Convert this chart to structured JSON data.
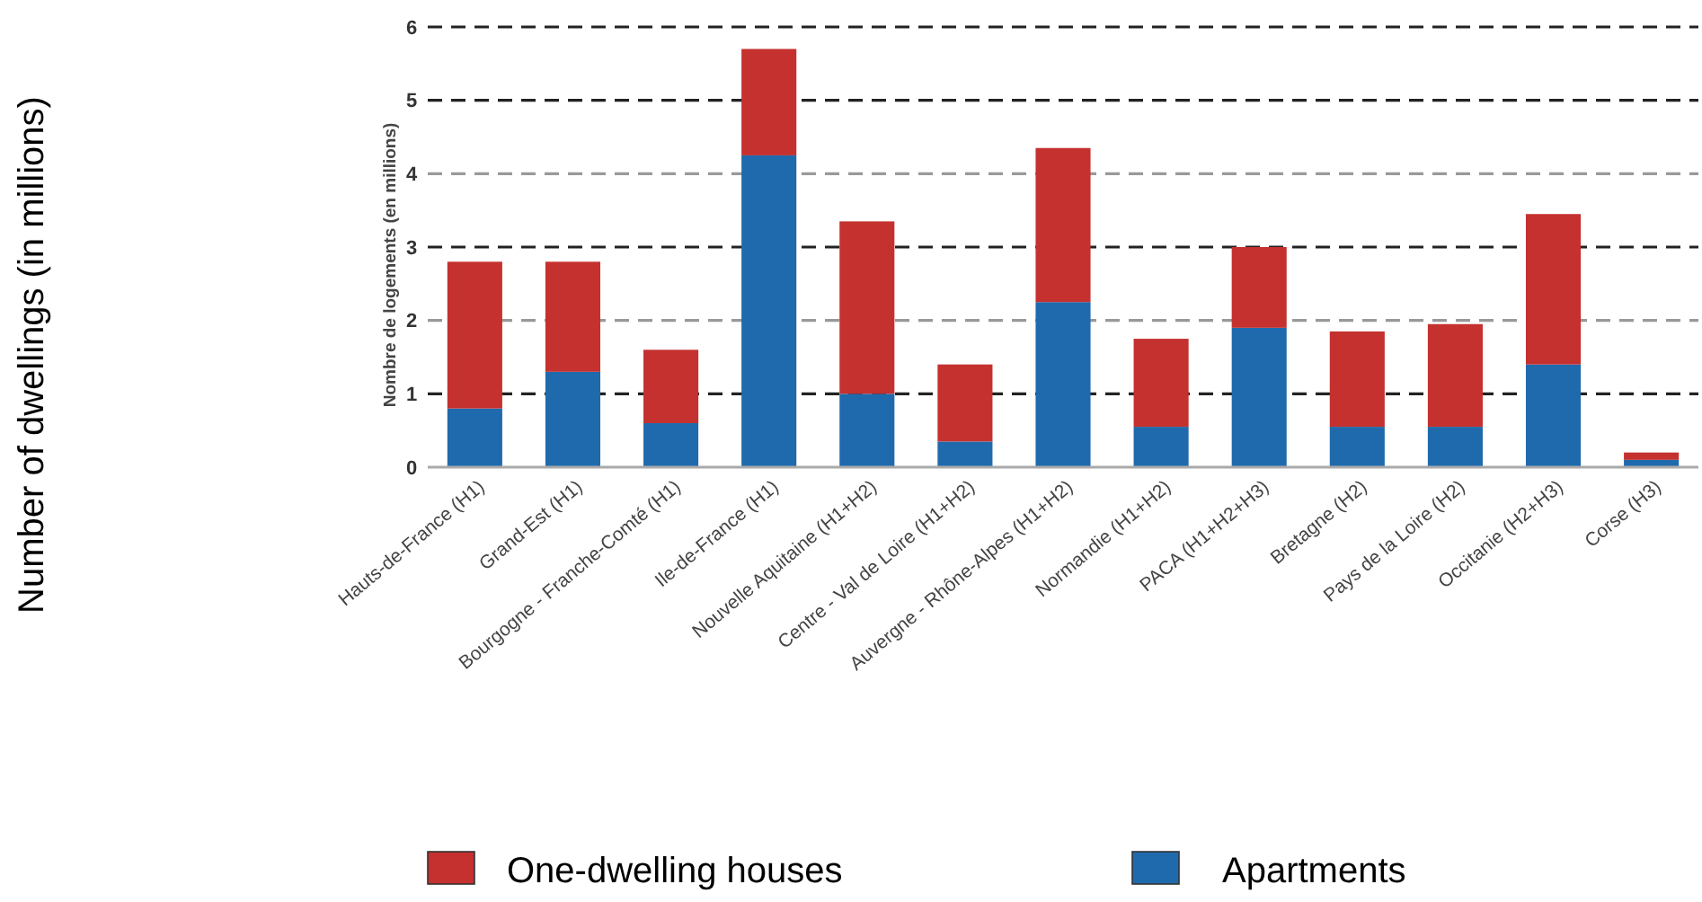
{
  "chart_data": {
    "type": "bar",
    "stacked": true,
    "ylabel": "Nombre de logements (en millions)",
    "annotations": [
      "Number of dwellings (in millions)"
    ],
    "categories": [
      "Hauts-de-France (H1)",
      "Grand-Est (H1)",
      "Bourgogne - Franche-Comté (H1)",
      "Ile-de-France (H1)",
      "Nouvelle Aquitaine (H1+H2)",
      "Centre - Val de Loire (H1+H2)",
      "Auvergne - Rhône-Alpes (H1+H2)",
      "Normandie (H1+H2)",
      "PACA (H1+H2+H3)",
      "Bretagne (H2)",
      "Pays de la Loire (H2)",
      "Occitanie (H2+H3)",
      "Corse (H3)"
    ],
    "series": [
      {
        "name": "Apartments",
        "color": "#1f6aad",
        "values": [
          0.8,
          1.3,
          0.6,
          4.25,
          1.0,
          0.35,
          2.25,
          0.55,
          1.9,
          0.55,
          0.55,
          1.4,
          0.1
        ]
      },
      {
        "name": "One-dwelling houses",
        "color": "#c4312f",
        "values": [
          2.0,
          1.5,
          1.0,
          1.45,
          2.35,
          1.05,
          2.1,
          1.2,
          1.1,
          1.3,
          1.4,
          2.05,
          0.1
        ]
      }
    ],
    "ylim": [
      0,
      6
    ],
    "yticks": [
      0,
      1,
      2,
      3,
      4,
      5,
      6
    ],
    "grid": "y",
    "legend": "bottom"
  }
}
